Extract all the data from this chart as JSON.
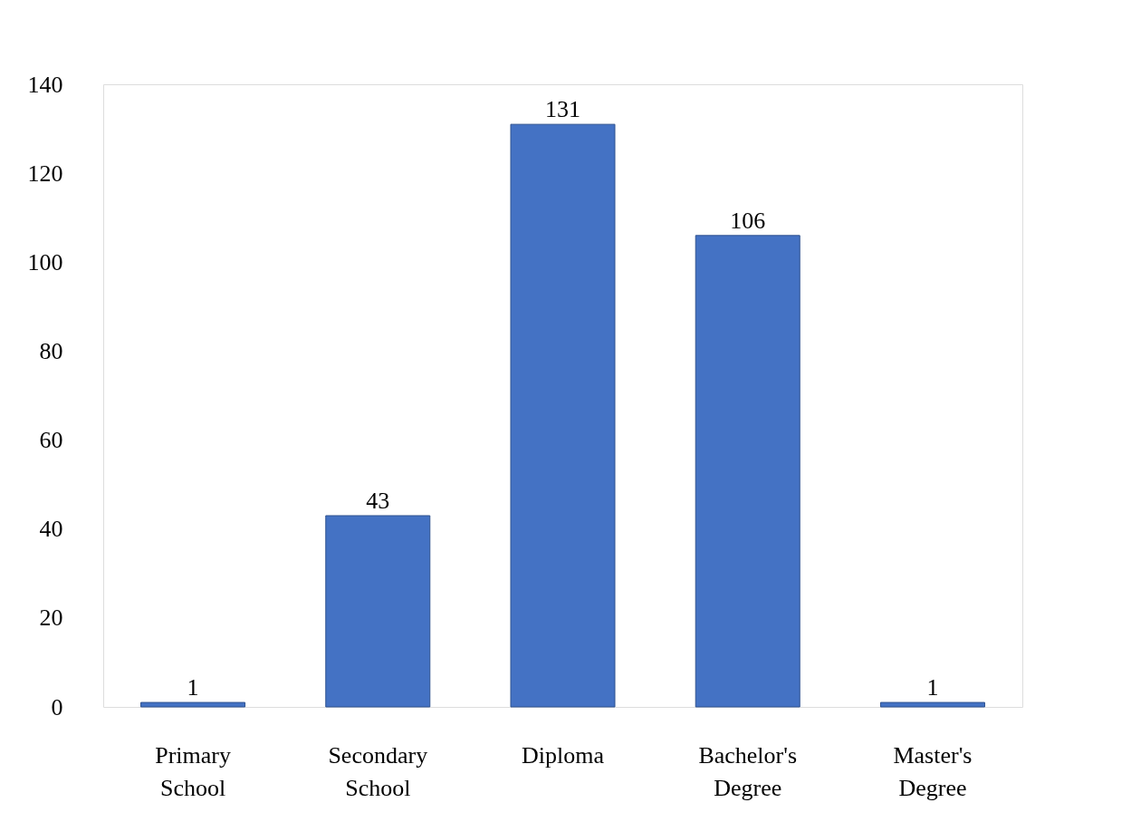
{
  "chart_data": {
    "type": "bar",
    "categories": [
      "Primary School",
      "Secondary School",
      "Diploma",
      "Bachelor's Degree",
      "Master's Degree"
    ],
    "values": [
      1,
      43,
      131,
      106,
      1
    ],
    "color": "#4472c4",
    "ylim": [
      0,
      140
    ],
    "yticks": [
      0,
      20,
      40,
      60,
      80,
      100,
      120,
      140
    ],
    "data_labels": true,
    "grid": false
  }
}
